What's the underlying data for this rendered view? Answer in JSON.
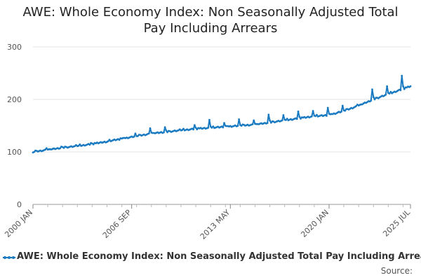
{
  "chart_data": {
    "type": "line",
    "title_lines": [
      "AWE: Whole Economy Index: Non Seasonally Adjusted Total",
      "Pay Including Arrears"
    ],
    "title": "AWE: Whole Economy Index: Non Seasonally Adjusted Total Pay Including Arrears",
    "xlabel": "",
    "ylabel": "",
    "ylim": [
      0,
      300
    ],
    "yticks": [
      0,
      100,
      200,
      300
    ],
    "x_tick_labels": [
      "2000 JAN",
      "2006 SEP",
      "2013 MAY",
      "2020 JAN",
      "2025 JUL"
    ],
    "x_tick_index": [
      0,
      80,
      160,
      240,
      306
    ],
    "x_start": "2000 JAN",
    "x_end": "2025 JUL",
    "grid": true,
    "legend_position": "bottom",
    "series": [
      {
        "name": "AWE: Whole Economy Index: Non Seasonally Adjusted Total Pay Including Arrears",
        "color": "#1a7ac1",
        "annual_levels": [
          100,
          104,
          108,
          111,
          115,
          120,
          125,
          130,
          135,
          138,
          141,
          144,
          146,
          148,
          150,
          152,
          156,
          160,
          164,
          168,
          170,
          178,
          188,
          200,
          210,
          220,
          230
        ],
        "december_peaks": [
          107,
          110,
          113,
          117,
          118,
          126,
          135,
          145,
          147,
          143,
          151,
          161,
          155,
          162,
          160,
          171,
          170,
          177,
          178,
          184,
          188,
          190,
          219,
          225,
          245,
          260
        ]
      }
    ],
    "legend_entries": [
      "AWE: Whole Economy Index: Non Seasonally Adjusted Total Pay Including Arrears"
    ],
    "source_label": "Source:"
  }
}
